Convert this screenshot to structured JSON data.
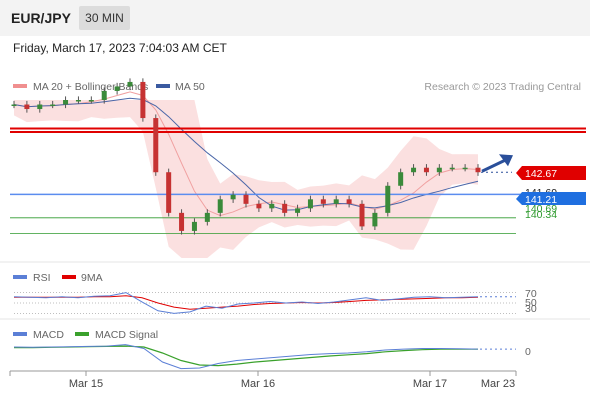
{
  "header": {
    "symbol": "EUR/JPY",
    "timeframe": "30 MIN"
  },
  "datetime": "Friday, March 17, 2023 7:04:03 AM CET",
  "credit": "Research © 2023 Trading Central",
  "colors": {
    "resistance": "#e00000",
    "support": "#5b8def",
    "support_green": "#2e9a2e",
    "bollinger": "#fbe0e0",
    "ma50": "#4a66a8",
    "rsi": "#5b7fd6",
    "macd_signal": "#3aa12c",
    "price_badge": "#e00000",
    "pivot_badge": "#1f6fe0"
  },
  "chart_data": [
    {
      "type": "candlestick",
      "title": "",
      "legend": [
        "MA 20 + Bollinger Bands",
        "MA 50"
      ],
      "legend_placement": "top-left",
      "x_ticks": [
        "Mar 15",
        "Mar 16",
        "Mar 17",
        "Mar 23"
      ],
      "ylim": [
        139.8,
        143.3
      ],
      "close": [
        143.2,
        143.1,
        143.2,
        143.2,
        143.3,
        143.3,
        143.3,
        143.5,
        143.6,
        143.7,
        142.9,
        141.7,
        140.8,
        140.4,
        140.6,
        140.8,
        141.1,
        141.2,
        141.0,
        140.9,
        141.0,
        140.8,
        140.9,
        141.1,
        141.0,
        141.1,
        141.0,
        140.5,
        140.8,
        141.4,
        141.7,
        141.8,
        141.7,
        141.8,
        141.8,
        141.8,
        141.7
      ],
      "resistance_levels": [
        142.67,
        142.59
      ],
      "support_levels": [
        141.21,
        140.69,
        140.34
      ],
      "price_label": "142.67",
      "pivot_label": "141.21",
      "level_labels": [
        "142.67",
        "142.59",
        "141.69",
        "141.21",
        "140.69",
        "140.34"
      ],
      "projection": "up"
    },
    {
      "type": "line",
      "legend": [
        "RSI",
        "9MA"
      ],
      "levels": [
        70,
        50,
        30
      ],
      "level_labels": [
        "70",
        "50",
        "30"
      ],
      "rsi": [
        62,
        61,
        60,
        62,
        60,
        63,
        64,
        70,
        52,
        35,
        30,
        33,
        44,
        40,
        48,
        50,
        53,
        50,
        52,
        49,
        52,
        56,
        60,
        55,
        58,
        61,
        62,
        60,
        61,
        62
      ],
      "ma9": [
        61,
        61,
        61,
        61,
        61,
        62,
        62,
        64,
        60,
        50,
        42,
        38,
        40,
        42,
        44,
        47,
        49,
        50,
        51,
        50,
        51,
        53,
        55,
        56,
        57,
        58,
        59,
        60,
        60,
        61
      ]
    },
    {
      "type": "line",
      "legend": [
        "MACD",
        "MACD Signal"
      ],
      "zero_label": "0",
      "macd": [
        0.1,
        0.09,
        0.1,
        0.11,
        0.12,
        0.13,
        0.18,
        0.05,
        -0.4,
        -0.62,
        -0.6,
        -0.45,
        -0.35,
        -0.3,
        -0.25,
        -0.2,
        -0.15,
        -0.12,
        -0.1,
        -0.06,
        0.0,
        0.03,
        0.05,
        0.05,
        0.04,
        0.03
      ],
      "signal": [
        0.08,
        0.08,
        0.09,
        0.1,
        0.11,
        0.12,
        0.13,
        0.1,
        -0.1,
        -0.35,
        -0.5,
        -0.52,
        -0.47,
        -0.4,
        -0.35,
        -0.3,
        -0.25,
        -0.2,
        -0.16,
        -0.12,
        -0.06,
        -0.02,
        0.01,
        0.03,
        0.03,
        0.03
      ]
    }
  ]
}
